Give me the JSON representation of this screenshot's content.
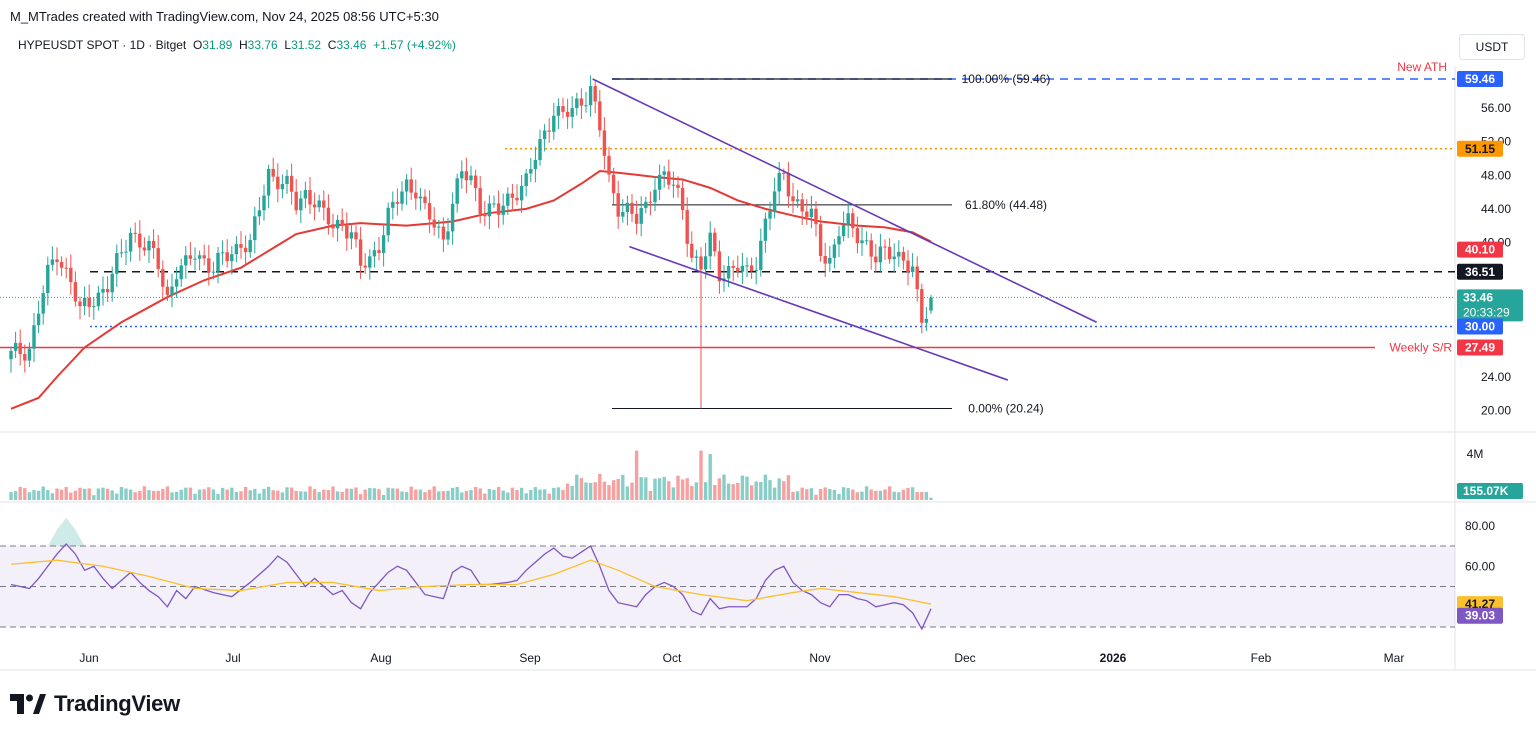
{
  "header": {
    "credit": "M_MTrades created with TradingView.com, Nov 24, 2025 08:56 UTC+5:30",
    "symbol": "HYPEUSDT SPOT · 1D · Bitget",
    "ohlc": {
      "o_label": "O",
      "o": "31.89",
      "h_label": "H",
      "h": "33.76",
      "l_label": "L",
      "l": "31.52",
      "c_label": "C",
      "c": "33.46",
      "change": "+1.57 (+4.92%)"
    },
    "currency_button": "USDT"
  },
  "colors": {
    "up": "#26a69a",
    "down": "#ef5350",
    "ma": "#e53935",
    "channel": "#673ab7",
    "rsi": "#7e57c2",
    "rsi_ma": "#fbc02d",
    "orange": "#ff9800",
    "blue": "#2962ff"
  },
  "chart_data": [
    {
      "type": "candlestick",
      "x_axis": {
        "labels": [
          "Jun",
          "Jul",
          "Aug",
          "Sep",
          "Oct",
          "Nov",
          "Dec",
          "2026",
          "Feb",
          "Mar"
        ]
      },
      "y_axis": {
        "labels": [
          "56.00",
          "52.00",
          "48.00",
          "44.00",
          "40.00",
          "24.00",
          "20.00"
        ],
        "ylim": [
          19,
          61
        ]
      },
      "close_path": [
        [
          0,
          26.5
        ],
        [
          4,
          27.5
        ],
        [
          6,
          32
        ],
        [
          8,
          36
        ],
        [
          10,
          38.8
        ],
        [
          13,
          35.5
        ],
        [
          15,
          31.5
        ],
        [
          18,
          33.5
        ],
        [
          21,
          34.8
        ],
        [
          24,
          38.5
        ],
        [
          26,
          41.5
        ],
        [
          28,
          40
        ],
        [
          30,
          39
        ],
        [
          32,
          37.5
        ],
        [
          34,
          33.5
        ],
        [
          36,
          36.5
        ],
        [
          38,
          37
        ],
        [
          40,
          39
        ],
        [
          42,
          38
        ],
        [
          44,
          36.8
        ],
        [
          46,
          38
        ],
        [
          48,
          39
        ],
        [
          50,
          40
        ],
        [
          52,
          39.5
        ],
        [
          54,
          44
        ],
        [
          56,
          48.5
        ],
        [
          58,
          47.5
        ],
        [
          60,
          46.5
        ],
        [
          62,
          44.5
        ],
        [
          64,
          46
        ],
        [
          66,
          45
        ],
        [
          68,
          43
        ],
        [
          70,
          42
        ],
        [
          72,
          42.5
        ],
        [
          74,
          41
        ],
        [
          76,
          37
        ],
        [
          78,
          38
        ],
        [
          80,
          40
        ],
        [
          82,
          43
        ],
        [
          84,
          45
        ],
        [
          86,
          47
        ],
        [
          88,
          46.5
        ],
        [
          90,
          43.5
        ],
        [
          92,
          42
        ],
        [
          94,
          40.5
        ],
        [
          96,
          45
        ],
        [
          98,
          48
        ],
        [
          100,
          47.5
        ],
        [
          102,
          44.5
        ],
        [
          104,
          44
        ],
        [
          106,
          43.5
        ],
        [
          108,
          45
        ],
        [
          110,
          46.5
        ],
        [
          112,
          47.2
        ],
        [
          114,
          50
        ],
        [
          116,
          53
        ],
        [
          118,
          56
        ],
        [
          120,
          55
        ],
        [
          122,
          55.5
        ],
        [
          124,
          57
        ],
        [
          126,
          58.5
        ],
        [
          128,
          53.5
        ],
        [
          130,
          47
        ],
        [
          132,
          44.5
        ],
        [
          134,
          44
        ],
        [
          136,
          42.5
        ],
        [
          138,
          44
        ],
        [
          140,
          47.5
        ],
        [
          142,
          48
        ],
        [
          144,
          46.5
        ],
        [
          146,
          44
        ],
        [
          148,
          38.5
        ],
        [
          150,
          37
        ],
        [
          152,
          40
        ],
        [
          154,
          36.5
        ],
        [
          156,
          36.8
        ],
        [
          158,
          37
        ],
        [
          160,
          36
        ],
        [
          162,
          38
        ],
        [
          164,
          42.5
        ],
        [
          166,
          46
        ],
        [
          168,
          47.8
        ],
        [
          170,
          45.5
        ],
        [
          172,
          44
        ],
        [
          174,
          43
        ],
        [
          176,
          39
        ],
        [
          178,
          38
        ],
        [
          180,
          41.5
        ],
        [
          182,
          42
        ],
        [
          184,
          41
        ],
        [
          186,
          40
        ],
        [
          188,
          38
        ],
        [
          190,
          38.5
        ],
        [
          192,
          39
        ],
        [
          194,
          38.2
        ],
        [
          196,
          36.5
        ],
        [
          197,
          33
        ],
        [
          198,
          30.5
        ],
        [
          199,
          31.8
        ],
        [
          200,
          33.46
        ]
      ],
      "range_low": {
        "x": 150,
        "value": 20.24
      },
      "levels": [
        {
          "value": 59.46,
          "tag": "59.46",
          "label": "New ATH",
          "style": "dashed",
          "color": "#2962ff"
        },
        {
          "value": 51.15,
          "tag": "51.15",
          "style": "dotted",
          "color": "#ff9800"
        },
        {
          "value": 36.51,
          "tag": "36.51",
          "style": "dashed",
          "color": "#131722"
        },
        {
          "value": 30.0,
          "tag": "30.00",
          "style": "dotted",
          "color": "#2962ff"
        },
        {
          "value": 27.49,
          "tag": "27.49",
          "label": "Weekly S/R",
          "style": "solid",
          "color": "#f23645"
        }
      ],
      "last_price": {
        "value": 33.46,
        "tag": "33.46",
        "countdown": "20:33:29"
      },
      "moving_average": {
        "last": "40.10",
        "values": [
          [
            0,
            20.2
          ],
          [
            6,
            21.5
          ],
          [
            10,
            24
          ],
          [
            16,
            27.5
          ],
          [
            24,
            30.5
          ],
          [
            34,
            33.5
          ],
          [
            42,
            35.5
          ],
          [
            50,
            37
          ],
          [
            56,
            39
          ],
          [
            62,
            41
          ],
          [
            70,
            42
          ],
          [
            76,
            42.3
          ],
          [
            86,
            42
          ],
          [
            96,
            42.5
          ],
          [
            104,
            43.5
          ],
          [
            112,
            44
          ],
          [
            118,
            45
          ],
          [
            124,
            47
          ],
          [
            128,
            48.5
          ],
          [
            132,
            48.3
          ],
          [
            140,
            47.8
          ],
          [
            146,
            47.5
          ],
          [
            152,
            46.5
          ],
          [
            158,
            45
          ],
          [
            164,
            44
          ],
          [
            170,
            43.2
          ],
          [
            176,
            42.5
          ],
          [
            184,
            42
          ],
          [
            190,
            41.8
          ],
          [
            196,
            41.2
          ],
          [
            200,
            40.1
          ]
        ]
      },
      "fibonacci": [
        {
          "label": "100.00% (59.46)",
          "value": 59.46
        },
        {
          "label": "61.80% (44.48)",
          "value": 44.48
        },
        {
          "label": "0.00% (20.24)",
          "value": 20.24
        }
      ],
      "channel": {
        "upper": [
          [
            126,
            59.46
          ],
          [
            236,
            30.5
          ]
        ],
        "lower": [
          [
            134,
            39.5
          ],
          [
            208,
            23.5
          ]
        ]
      }
    },
    {
      "type": "bar",
      "name": "Volume",
      "last": "155.07K",
      "y_axis": {
        "labels": [
          "4M"
        ]
      }
    },
    {
      "type": "line",
      "name": "RSI",
      "y_axis": {
        "labels": [
          "80.00",
          "60.00"
        ],
        "ylim": [
          28,
          92
        ]
      },
      "bands": [
        70,
        50,
        30
      ],
      "rsi": [
        [
          0,
          51
        ],
        [
          4,
          49
        ],
        [
          6,
          54
        ],
        [
          8,
          60
        ],
        [
          10,
          66
        ],
        [
          12,
          71
        ],
        [
          14,
          66
        ],
        [
          16,
          58
        ],
        [
          18,
          60
        ],
        [
          20,
          54
        ],
        [
          22,
          49
        ],
        [
          26,
          57
        ],
        [
          28,
          52
        ],
        [
          30,
          48
        ],
        [
          32,
          45
        ],
        [
          34,
          40
        ],
        [
          36,
          48
        ],
        [
          38,
          44
        ],
        [
          40,
          50
        ],
        [
          44,
          47
        ],
        [
          48,
          45
        ],
        [
          52,
          52
        ],
        [
          56,
          60
        ],
        [
          58,
          65
        ],
        [
          60,
          62
        ],
        [
          62,
          56
        ],
        [
          64,
          50
        ],
        [
          66,
          54
        ],
        [
          68,
          50
        ],
        [
          70,
          46
        ],
        [
          72,
          48
        ],
        [
          74,
          42
        ],
        [
          76,
          39
        ],
        [
          78,
          47
        ],
        [
          80,
          52
        ],
        [
          82,
          57
        ],
        [
          84,
          60
        ],
        [
          86,
          58
        ],
        [
          88,
          52
        ],
        [
          90,
          46
        ],
        [
          92,
          45
        ],
        [
          94,
          44
        ],
        [
          96,
          57
        ],
        [
          98,
          60
        ],
        [
          100,
          58
        ],
        [
          102,
          51
        ],
        [
          104,
          51
        ],
        [
          108,
          52
        ],
        [
          110,
          53
        ],
        [
          112,
          58
        ],
        [
          114,
          62
        ],
        [
          116,
          66
        ],
        [
          118,
          69
        ],
        [
          120,
          65
        ],
        [
          122,
          64
        ],
        [
          124,
          67
        ],
        [
          126,
          70
        ],
        [
          128,
          60
        ],
        [
          130,
          48
        ],
        [
          132,
          42
        ],
        [
          134,
          41
        ],
        [
          136,
          40
        ],
        [
          138,
          46
        ],
        [
          140,
          50
        ],
        [
          142,
          52
        ],
        [
          144,
          50
        ],
        [
          146,
          46
        ],
        [
          148,
          38
        ],
        [
          150,
          36
        ],
        [
          152,
          44
        ],
        [
          154,
          39
        ],
        [
          156,
          40
        ],
        [
          158,
          40
        ],
        [
          160,
          40
        ],
        [
          162,
          44
        ],
        [
          164,
          53
        ],
        [
          166,
          58
        ],
        [
          168,
          60
        ],
        [
          170,
          52
        ],
        [
          172,
          48
        ],
        [
          174,
          46
        ],
        [
          176,
          42
        ],
        [
          178,
          40
        ],
        [
          180,
          46
        ],
        [
          182,
          46
        ],
        [
          184,
          44
        ],
        [
          186,
          43
        ],
        [
          188,
          40
        ],
        [
          190,
          41
        ],
        [
          192,
          42
        ],
        [
          194,
          41
        ],
        [
          196,
          37
        ],
        [
          198,
          29
        ],
        [
          200,
          39.03
        ]
      ],
      "rsi_ma": [
        [
          0,
          61
        ],
        [
          10,
          63
        ],
        [
          20,
          60
        ],
        [
          30,
          55
        ],
        [
          40,
          49
        ],
        [
          50,
          48
        ],
        [
          60,
          52
        ],
        [
          70,
          52
        ],
        [
          80,
          48
        ],
        [
          90,
          50
        ],
        [
          100,
          51
        ],
        [
          110,
          51
        ],
        [
          118,
          56
        ],
        [
          126,
          63
        ],
        [
          132,
          58
        ],
        [
          140,
          50
        ],
        [
          150,
          46
        ],
        [
          160,
          43
        ],
        [
          170,
          47
        ],
        [
          176,
          49
        ],
        [
          184,
          47
        ],
        [
          192,
          45
        ],
        [
          200,
          41.27
        ]
      ],
      "rsi_last": "39.03",
      "rsi_ma_last": "41.27"
    }
  ],
  "branding": {
    "logo_text": "TradingView",
    "logo_mark": "tradingview-logo"
  }
}
